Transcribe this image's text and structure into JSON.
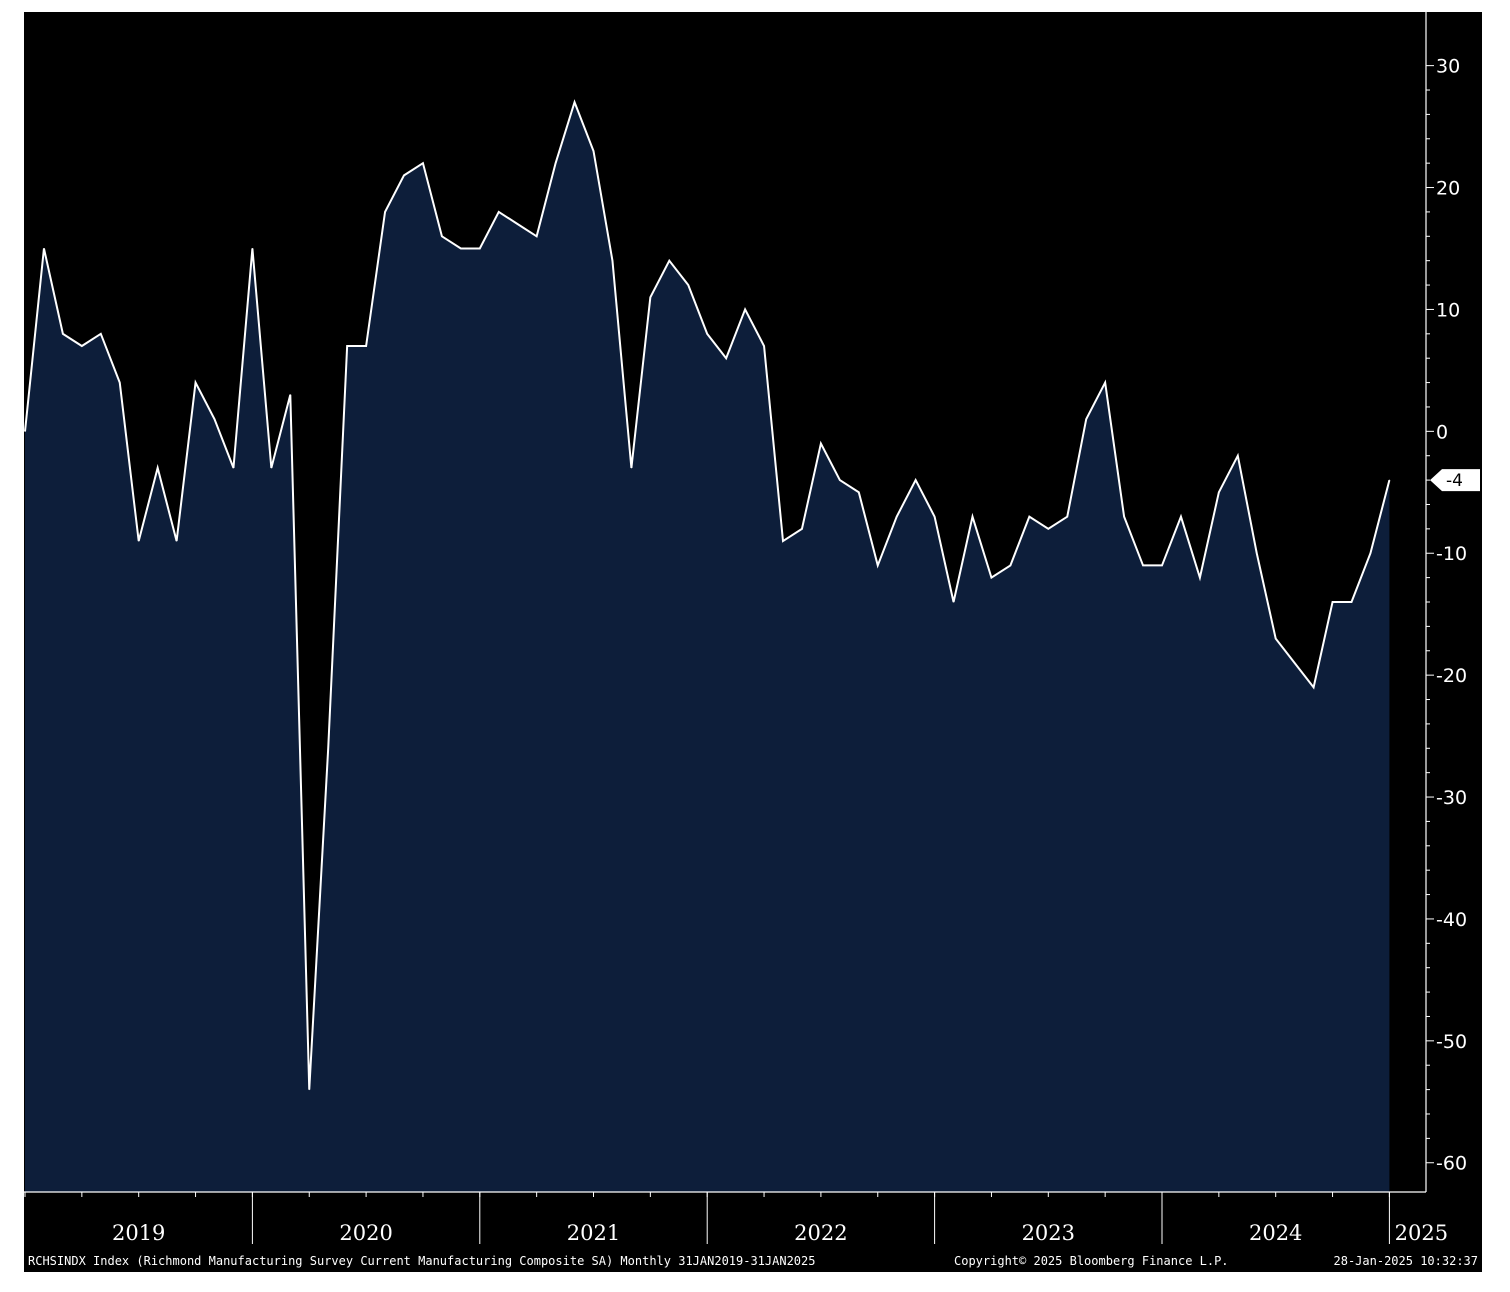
{
  "chart_data": {
    "type": "area",
    "frequency": "Monthly",
    "x_start": "2019-01",
    "x_end": "2025-01",
    "values": [
      0,
      15,
      8,
      7,
      8,
      4,
      -9,
      -3,
      -9,
      4,
      1,
      -3,
      15,
      -3,
      3,
      -54,
      -26,
      7,
      7,
      18,
      21,
      22,
      16,
      15,
      15,
      18,
      17,
      16,
      22,
      27,
      23,
      14,
      -3,
      11,
      14,
      12,
      8,
      6,
      10,
      7,
      -9,
      -8,
      -1,
      -4,
      -5,
      -11,
      -7,
      -4,
      -7,
      -14,
      -7,
      -12,
      -11,
      -7,
      -8,
      -7,
      1,
      4,
      -7,
      -11,
      -11,
      -7,
      -12,
      -5,
      -2,
      -10,
      -17,
      -19,
      -21,
      -14,
      -14,
      -10,
      -4
    ],
    "y_ticks": [
      30,
      20,
      10,
      0,
      -10,
      -20,
      -30,
      -40,
      -50,
      -60
    ],
    "y_tick_labels": [
      "30",
      "20",
      "10",
      "0",
      "-10",
      "-20",
      "-30",
      "-40",
      "-50",
      "-60"
    ],
    "ylim": [
      -62.4,
      34.4
    ],
    "x_year_labels": [
      "2019",
      "2020",
      "2021",
      "2022",
      "2023",
      "2024",
      "2025"
    ],
    "last_value_label": "-4",
    "y_axis_side": "right",
    "grid": false,
    "fill_color": "#0d1e3a",
    "line_color": "#ffffff",
    "background_color": "#000000"
  },
  "footer": {
    "description": "RCHSINDX Index (Richmond Manufacturing Survey Current Manufacturing Composite SA)  Monthly 31JAN2019-31JAN2025",
    "copyright": "Copyright© 2025 Bloomberg Finance L.P.",
    "timestamp": "28-Jan-2025 10:32:37"
  }
}
